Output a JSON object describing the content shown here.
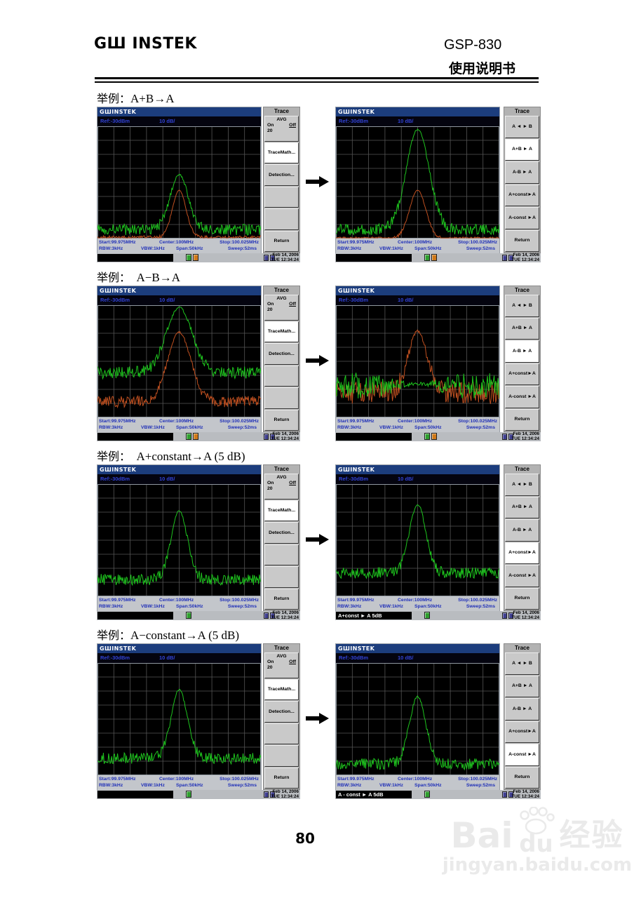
{
  "header": {
    "logo": "GШ INSTEK",
    "model": "GSP-830",
    "subtitle": "使用说明书"
  },
  "footer": {
    "page_number": "80"
  },
  "watermark": {
    "brand_left": "Bai",
    "brand_right": "du",
    "brand_cn": "经验",
    "url": "jingyan.baidu.com"
  },
  "example_prefix": "举例：",
  "screen_common": {
    "titlebar": "GШINSTEK",
    "ref_level": "Ref:-30dBm",
    "scale": "10 dB/",
    "status": {
      "start": "Start:99.975MHz",
      "center": "Center:100MHz",
      "stop": "Stop:100.025MHz",
      "rbw": "RBW:3kHz",
      "vbw": "VBW:1kHz",
      "span": "Span:50kHz",
      "sweep": "Sweep:52ms"
    },
    "date_line1": "Feb 14, 2006",
    "date_line2": "TUE 12:34:24"
  },
  "colors": {
    "trace_green": "#1ec41e",
    "trace_red": "#c05020",
    "titlebar_blue": "#1c3d7d",
    "status_text_blue": "#2030b8"
  },
  "left_menu": {
    "title": "Trace",
    "avg": {
      "label": "AVG",
      "on": "On",
      "off": "Off",
      "count": "20"
    },
    "items": [
      "TraceMath...",
      "Detection...",
      "",
      "",
      "Return"
    ],
    "active_index": 0
  },
  "right_menu": {
    "title": "Trace",
    "items": [
      "A ◄   ► B",
      "A+B ►   A",
      "A-B   ►   A",
      "A+const►A",
      "A-const ►A",
      "Return"
    ]
  },
  "sections": [
    {
      "formula": "A+B→A",
      "right_active": 1,
      "left": {
        "bar_text": "",
        "icons": [
          "green",
          "orange"
        ],
        "traces": [
          {
            "name": "green",
            "color": "#1ec41e",
            "peak": 0.43,
            "floor": 0.92,
            "width": 0.055,
            "noise": 0.05,
            "seed": 11
          },
          {
            "name": "red",
            "color": "#c05020",
            "peak": 0.57,
            "floor": 0.99,
            "width": 0.042,
            "noise": 0.015,
            "seed": 12
          }
        ]
      },
      "right": {
        "bar_text": "",
        "icons": [
          "green",
          "orange"
        ],
        "traces": [
          {
            "name": "green",
            "color": "#1ec41e",
            "peak": 0.03,
            "floor": 0.92,
            "width": 0.07,
            "noise": 0.05,
            "seed": 13
          },
          {
            "name": "red",
            "color": "#c05020",
            "peak": 0.57,
            "floor": 1.0,
            "width": 0.05,
            "noise": 0.015,
            "seed": 14
          }
        ]
      }
    },
    {
      "formula": "  A−B→A",
      "right_active": 2,
      "left": {
        "bar_text": "",
        "icons": [
          "green",
          "orange"
        ],
        "traces": [
          {
            "name": "red",
            "color": "#c05020",
            "peak": 0.24,
            "floor": 0.86,
            "width": 0.07,
            "noise": 0.05,
            "seed": 22
          },
          {
            "name": "green",
            "color": "#1ec41e",
            "peak": 0.02,
            "floor": 0.6,
            "width": 0.08,
            "noise": 0.055,
            "seed": 21
          }
        ]
      },
      "right": {
        "bar_text": "",
        "icons": [
          "green",
          "orange"
        ],
        "traces": [
          {
            "name": "red",
            "color": "#c05020",
            "peak": 0.23,
            "floor": 0.78,
            "width": 0.058,
            "noise": 0.1,
            "seed": 24
          },
          {
            "name": "green",
            "color": "#1ec41e",
            "peak": 0.7,
            "floor": 0.72,
            "width": 0.09,
            "noise": 0.12,
            "calm": true,
            "seed": 23
          }
        ]
      }
    },
    {
      "formula": "  A+constant→A (5 dB)",
      "right_active": 3,
      "left": {
        "bar_text": "",
        "icons": [
          "green"
        ],
        "traces": [
          {
            "name": "green",
            "color": "#1ec41e",
            "peak": 0.24,
            "floor": 0.85,
            "width": 0.05,
            "noise": 0.05,
            "seed": 31
          }
        ]
      },
      "right": {
        "bar_text": "A+const ► A 5dB",
        "icons": [
          "green"
        ],
        "traces": [
          {
            "name": "green",
            "color": "#1ec41e",
            "peak": 0.18,
            "floor": 0.79,
            "width": 0.05,
            "noise": 0.05,
            "seed": 32
          }
        ]
      }
    },
    {
      "formula": "A−constant→A (5 dB)",
      "right_active": 4,
      "left": {
        "bar_text": "",
        "icons": [
          "green"
        ],
        "traces": [
          {
            "name": "green",
            "color": "#1ec41e",
            "peak": 0.24,
            "floor": 0.85,
            "width": 0.05,
            "noise": 0.05,
            "seed": 41
          }
        ]
      },
      "right": {
        "bar_text": "A - const ► A 5dB",
        "icons": [
          "green"
        ],
        "traces": [
          {
            "name": "green",
            "color": "#1ec41e",
            "peak": 0.3,
            "floor": 0.9,
            "width": 0.05,
            "noise": 0.05,
            "seed": 42
          }
        ]
      }
    }
  ]
}
